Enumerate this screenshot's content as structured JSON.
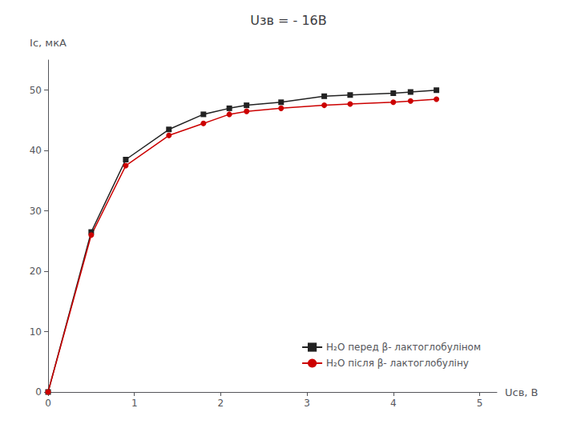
{
  "chart_data": {
    "type": "line",
    "title": "Uзв = - 16В",
    "xlabel": "Uсв, В",
    "ylabel": "Iс, мкА",
    "x": [
      0,
      0.5,
      0.9,
      1.4,
      1.8,
      2.1,
      2.3,
      2.7,
      3.2,
      3.5,
      4.0,
      4.2,
      4.5
    ],
    "series": [
      {
        "name": "H₂O перед β- лактоглобуліном",
        "color": "#222222",
        "marker": "square",
        "values": [
          0,
          26.5,
          38.5,
          43.5,
          46.0,
          47.0,
          47.5,
          48.0,
          49.0,
          49.2,
          49.5,
          49.7,
          50.0
        ]
      },
      {
        "name": "H₂O після β- лактоглобуліну",
        "color": "#cc0000",
        "marker": "circle",
        "values": [
          0,
          26.0,
          37.5,
          42.5,
          44.5,
          46.0,
          46.5,
          47.0,
          47.5,
          47.7,
          48.0,
          48.2,
          48.5
        ]
      }
    ],
    "xlim": [
      0,
      5.2
    ],
    "ylim": [
      0,
      55
    ],
    "xticks": [
      0,
      1,
      2,
      3,
      4,
      5
    ],
    "yticks": [
      0,
      10,
      20,
      30,
      40,
      50
    ],
    "grid": false,
    "legend": "lower right"
  }
}
